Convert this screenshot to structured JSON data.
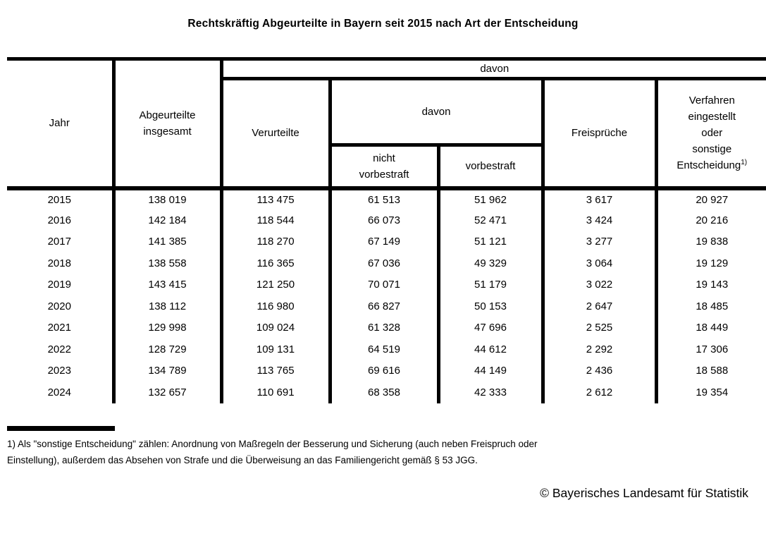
{
  "title": "Rechtskräftig Abgeurteilte in Bayern seit 2015 nach Art der Entscheidung",
  "table": {
    "header": {
      "jahr": "Jahr",
      "abgeurteilte_insgesamt": "Abgeurteilte\ninsgesamt",
      "davon_outer": "davon",
      "verurteilte": "Verurteilte",
      "davon_inner": "davon",
      "nicht_vorbestraft": "nicht\nvorbestraft",
      "vorbestraft": "vorbestraft",
      "freisprueche": "Freisprüche",
      "verfahren_eingestellt": "Verfahren\neingestellt\noder\nsonstige\nEntscheidung",
      "verfahren_footnote_marker": "1)"
    },
    "rows": [
      [
        "2015",
        "138 019",
        "113 475",
        "61 513",
        "51 962",
        "3 617",
        "20 927"
      ],
      [
        "2016",
        "142 184",
        "118 544",
        "66 073",
        "52 471",
        "3 424",
        "20 216"
      ],
      [
        "2017",
        "141 385",
        "118 270",
        "67 149",
        "51 121",
        "3 277",
        "19 838"
      ],
      [
        "2018",
        "138 558",
        "116 365",
        "67 036",
        "49 329",
        "3 064",
        "19 129"
      ],
      [
        "2019",
        "143 415",
        "121 250",
        "70 071",
        "51 179",
        "3 022",
        "19 143"
      ],
      [
        "2020",
        "138 112",
        "116 980",
        "66 827",
        "50 153",
        "2 647",
        "18 485"
      ],
      [
        "2021",
        "129 998",
        "109 024",
        "61 328",
        "47 696",
        "2 525",
        "18 449"
      ],
      [
        "2022",
        "128 729",
        "109 131",
        "64 519",
        "44 612",
        "2 292",
        "17 306"
      ],
      [
        "2023",
        "134 789",
        "113 765",
        "69 616",
        "44 149",
        "2 436",
        "18 588"
      ],
      [
        "2024",
        "132 657",
        "110 691",
        "68 358",
        "42 333",
        "2 612",
        "19 354"
      ]
    ]
  },
  "footnote": {
    "line1": "1) Als \"sonstige Entscheidung\" zählen: Anordnung von Maßregeln der Besserung und Sicherung (auch neben Freispruch oder",
    "line2": "Einstellung), außerdem das Absehen von Strafe und die Überweisung an das Familiengericht gemäß § 53 JGG."
  },
  "copyright": "© Bayerisches Landesamt für Statistik"
}
